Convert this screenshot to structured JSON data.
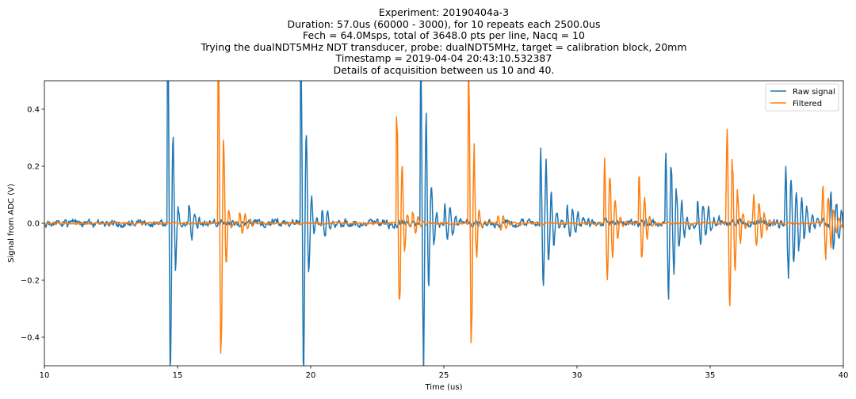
{
  "title_lines": [
    "Experiment: 20190404a-3",
    "Duration: 57.0us (60000 - 3000), for 10 repeats each 2500.0us",
    "Fech = 64.0Msps, total of 3648.0 pts per line, Nacq = 10",
    "Trying the dualNDT5MHz NDT transducer, probe: dualNDT5MHz, target = calibration block, 20mm",
    "Timestamp = 2019-04-04 20:43:10.532387",
    "Details of acquisition between us 10 and 40."
  ],
  "chart_data": {
    "type": "line",
    "xlabel": "Time (us)",
    "ylabel": "Signal from ADC (V)",
    "xlim": [
      10,
      40
    ],
    "ylim": [
      -0.5,
      0.5
    ],
    "xticks": [
      10,
      15,
      20,
      25,
      30,
      35,
      40
    ],
    "yticks": [
      -0.4,
      -0.2,
      0.0,
      0.2,
      0.4
    ],
    "xtick_labels": [
      "10",
      "15",
      "20",
      "25",
      "30",
      "35",
      "40"
    ],
    "ytick_labels": [
      "−0.4",
      "−0.2",
      "0.0",
      "0.2",
      "0.4"
    ],
    "grid": false,
    "legend_position": "top-right",
    "series": [
      {
        "name": "Raw signal",
        "color": "#1f77b4",
        "noise": 0.01,
        "bursts": [
          {
            "t": 14.6,
            "amp": 0.62,
            "f": 5.0,
            "w": 0.35
          },
          {
            "t": 15.4,
            "amp": 0.06,
            "f": 5.0,
            "w": 0.4
          },
          {
            "t": 19.6,
            "amp": 0.58,
            "f": 5.0,
            "w": 0.4
          },
          {
            "t": 20.4,
            "amp": 0.05,
            "f": 5.0,
            "w": 0.5
          },
          {
            "t": 24.1,
            "amp": 0.56,
            "f": 5.0,
            "w": 0.45
          },
          {
            "t": 25.0,
            "amp": 0.06,
            "f": 5.0,
            "w": 0.6
          },
          {
            "t": 28.6,
            "amp": 0.24,
            "f": 5.0,
            "w": 0.6
          },
          {
            "t": 29.6,
            "amp": 0.06,
            "f": 5.0,
            "w": 0.6
          },
          {
            "t": 33.3,
            "amp": 0.24,
            "f": 5.0,
            "w": 0.7
          },
          {
            "t": 34.5,
            "amp": 0.08,
            "f": 5.0,
            "w": 0.7
          },
          {
            "t": 37.8,
            "amp": 0.18,
            "f": 5.0,
            "w": 0.9
          },
          {
            "t": 39.5,
            "amp": 0.1,
            "f": 5.0,
            "w": 0.7
          }
        ]
      },
      {
        "name": "Filtered",
        "color": "#ff7f0e",
        "noise": 0.003,
        "bursts": [
          {
            "t": 16.5,
            "amp": 0.58,
            "f": 5.0,
            "w": 0.35
          },
          {
            "t": 17.3,
            "amp": 0.04,
            "f": 5.0,
            "w": 0.5
          },
          {
            "t": 23.2,
            "amp": 0.4,
            "f": 5.0,
            "w": 0.35
          },
          {
            "t": 23.8,
            "amp": 0.04,
            "f": 5.0,
            "w": 0.4
          },
          {
            "t": 25.9,
            "amp": 0.52,
            "f": 5.0,
            "w": 0.35
          },
          {
            "t": 27.0,
            "amp": 0.03,
            "f": 5.0,
            "w": 0.5
          },
          {
            "t": 31.0,
            "amp": 0.22,
            "f": 5.0,
            "w": 0.55
          },
          {
            "t": 32.3,
            "amp": 0.16,
            "f": 5.0,
            "w": 0.4
          },
          {
            "t": 35.6,
            "amp": 0.3,
            "f": 5.0,
            "w": 0.55
          },
          {
            "t": 36.6,
            "amp": 0.1,
            "f": 5.0,
            "w": 0.55
          },
          {
            "t": 39.2,
            "amp": 0.12,
            "f": 5.0,
            "w": 0.6
          }
        ]
      }
    ]
  }
}
